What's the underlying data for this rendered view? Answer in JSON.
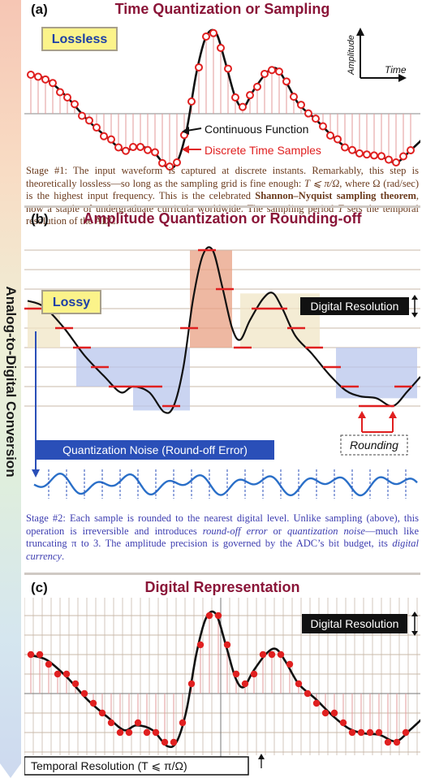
{
  "side_label": "Analog-to-Digital Conversion",
  "panel_a": {
    "letter": "(a)",
    "title": "Time Quantization or Sampling",
    "badge": "Lossless",
    "axis_y": "Amplitude",
    "axis_x": "Time",
    "label_continuous": "Continuous Function",
    "label_discrete": "Discrete Time Samples",
    "caption": {
      "p1": "Stage #1: The input waveform is captured at discrete instants. Remarkably, this step is theoretically lossless—so long as the sampling grid is fine enough: ",
      "formula": "T ⩽ π/Ω",
      "p2": ", where Ω (rad/sec) is the highest input frequency.  This is the celebrated ",
      "bold": "Shannon–Nyquist sampling theorem",
      "p3": ", now a staple of undergraduate curricula worldwide. The sampling period ",
      "T": "T",
      "p4": " sets the temporal resolution of the ADC."
    }
  },
  "panel_b": {
    "letter": "(b)",
    "title": "Amplitude Quantization or Rounding-off",
    "badge": "Lossy",
    "digital_resolution": "Digital Resolution",
    "noise_label": "Quantization Noise (Round-off Error)",
    "rounding_label": "Rounding",
    "caption": {
      "p1": "Stage #2: Each sample is rounded to the nearest digital level.  Unlike sampling (above), this operation is irreversible and introduces ",
      "i1": "round-off error",
      "p2": " or ",
      "i2": "quantization noise",
      "p3": "—much like truncating π to 3. The amplitude precision is governed by the ADC’s bit budget, its ",
      "i3": "digital currency",
      "p4": "."
    }
  },
  "panel_c": {
    "letter": "(c)",
    "title": "Digital Representation",
    "digital_resolution": "Digital Resolution",
    "temporal_label": "Temporal Resolution   (T ⩽ π/Ω)"
  },
  "colors": {
    "title": "#8a1538",
    "sample": "#e02020",
    "caption_a": "#6b3b1e",
    "caption_b": "#3d3db0",
    "badge_bg": "#fbf38a",
    "badge_text": "#1c3fa6",
    "noise_box": "#2a4fb8"
  }
}
